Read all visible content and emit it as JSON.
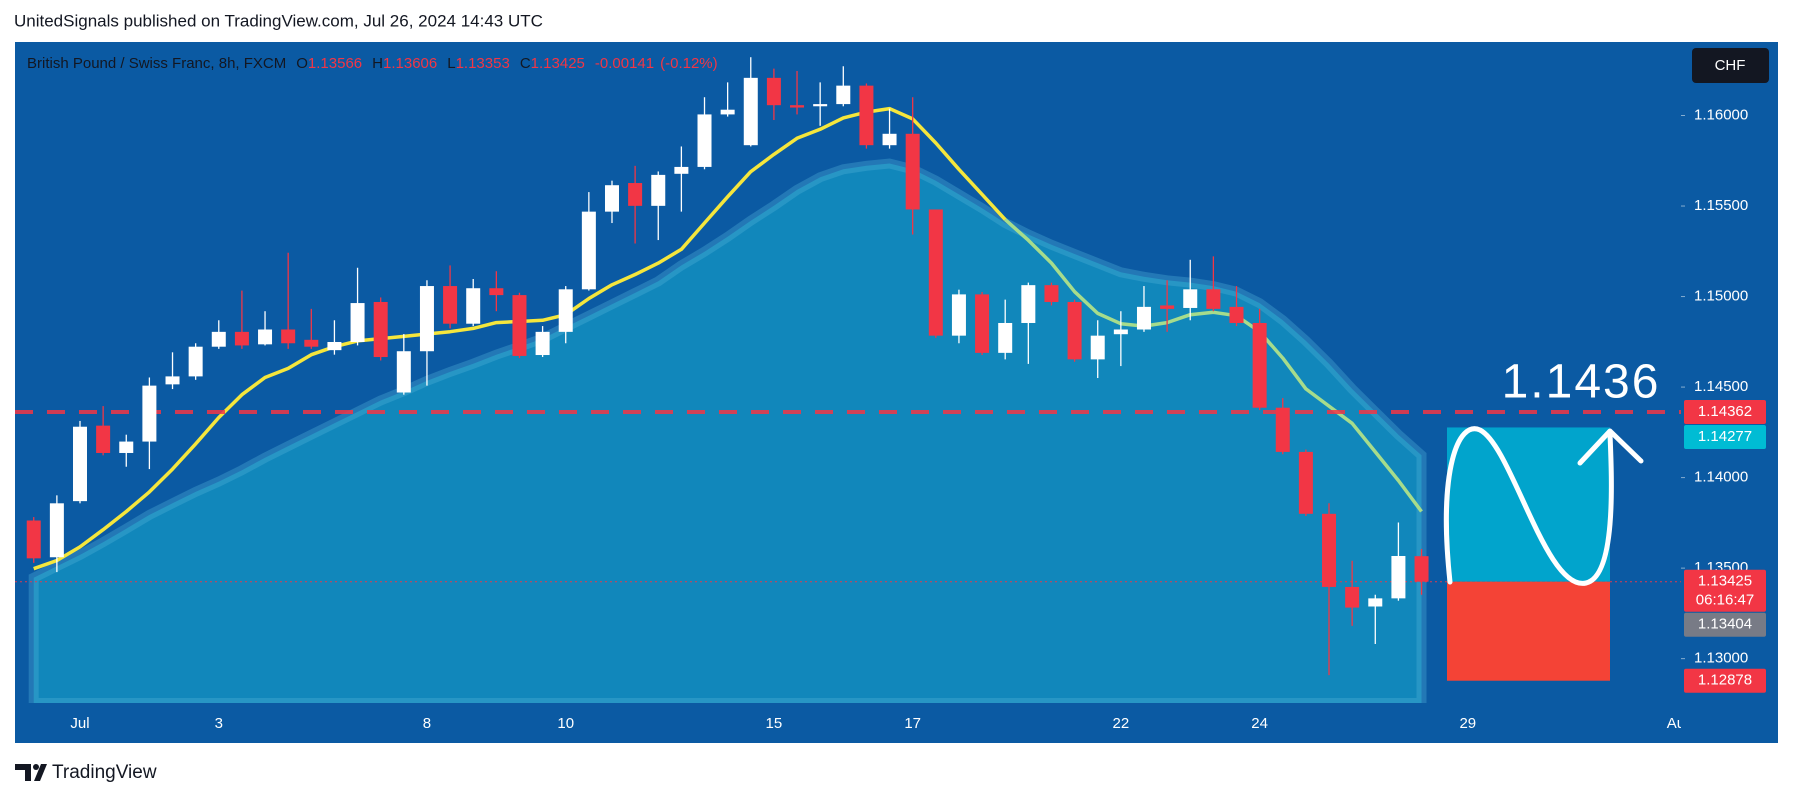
{
  "header": "UnitedSignals published on TradingView.com, Jul 26, 2024 14:43 UTC",
  "footer": "TradingView",
  "chart_data": {
    "type": "candlestick",
    "title": "British Pound / Swiss Franc, 8h, FXCM",
    "legend": {
      "o_label": "O",
      "open": "1.13566",
      "h_label": "H",
      "high": "1.13606",
      "l_label": "L",
      "low": "1.13353",
      "c_label": "C",
      "close": "1.13425",
      "change": "-0.00141",
      "change_pct": "(-0.12%)"
    },
    "currency": "CHF",
    "categories": [
      null,
      null,
      "Jul",
      null,
      null,
      null,
      null,
      null,
      "3",
      null,
      null,
      null,
      null,
      null,
      null,
      null,
      null,
      "8",
      null,
      null,
      null,
      null,
      null,
      "10",
      null,
      null,
      null,
      null,
      null,
      null,
      null,
      null,
      "15",
      null,
      null,
      null,
      null,
      null,
      "17",
      null,
      null,
      null,
      null,
      null,
      null,
      null,
      null,
      "22",
      null,
      null,
      null,
      null,
      null,
      "24",
      null,
      null,
      null,
      null,
      null,
      null,
      null,
      null,
      "29",
      null,
      null,
      null,
      null,
      null,
      null,
      null,
      null,
      "Au"
    ],
    "open": [
      1.13763,
      1.1356,
      1.1387,
      1.14287,
      1.14136,
      1.14199,
      1.14515,
      1.14559,
      1.14723,
      1.14805,
      1.14736,
      1.14818,
      1.14761,
      1.14704,
      1.14749,
      1.1497,
      1.1447,
      1.14698,
      1.15058,
      1.1485,
      1.15046,
      1.15008,
      1.14677,
      1.14805,
      1.1504,
      1.15469,
      1.15627,
      1.15501,
      1.15678,
      1.15716,
      1.16006,
      1.15836,
      1.16208,
      1.16057,
      1.16051,
      1.16063,
      1.16165,
      1.15836,
      1.15899,
      1.15481,
      1.14784,
      1.15012,
      1.14689,
      1.14854,
      1.15063,
      1.1497,
      1.14653,
      1.14792,
      1.14818,
      1.14951,
      1.14937,
      1.1504,
      1.14943,
      1.14854,
      1.14386,
      1.14142,
      1.138,
      1.13396,
      1.13288,
      1.13333,
      1.13566,
      null,
      null,
      null,
      null,
      null,
      null,
      null,
      null,
      null,
      null,
      null
    ],
    "high": [
      1.13782,
      1.13902,
      1.14313,
      1.14395,
      1.14237,
      1.14553,
      1.14692,
      1.14742,
      1.14869,
      1.15033,
      1.14919,
      1.15242,
      1.14932,
      1.14869,
      1.15159,
      1.14995,
      1.14793,
      1.1509,
      1.15172,
      1.15097,
      1.1514,
      1.15021,
      1.14837,
      1.15058,
      1.15577,
      1.1564,
      1.15722,
      1.15691,
      1.15829,
      1.16101,
      1.16183,
      1.16322,
      1.16259,
      1.16246,
      1.16183,
      1.16272,
      1.16177,
      1.16038,
      1.16101,
      1.15481,
      1.15038,
      1.15025,
      1.14983,
      1.15077,
      1.15077,
      1.14983,
      1.14869,
      1.14919,
      1.15058,
      1.1509,
      1.15203,
      1.15222,
      1.15058,
      1.14932,
      1.14439,
      1.14155,
      1.13858,
      1.13541,
      1.13353,
      1.13752,
      1.13606,
      null,
      null,
      null,
      null,
      null,
      null,
      null,
      null,
      null,
      null,
      null
    ],
    "low": [
      1.13529,
      1.13478,
      1.13858,
      1.14123,
      1.1406,
      1.14047,
      1.14489,
      1.1454,
      1.14711,
      1.14711,
      1.1473,
      1.14711,
      1.14711,
      1.14679,
      1.1473,
      1.14647,
      1.14458,
      1.14508,
      1.14824,
      1.14837,
      1.14919,
      1.1466,
      1.14666,
      1.14742,
      1.15033,
      1.15406,
      1.15293,
      1.15312,
      1.15469,
      1.15703,
      1.15994,
      1.15829,
      1.15975,
      1.16006,
      1.15943,
      1.16051,
      1.15817,
      1.15817,
      1.15343,
      1.14772,
      1.14742,
      1.14677,
      1.14653,
      1.14628,
      1.14951,
      1.1464,
      1.1455,
      1.14616,
      1.14805,
      1.14805,
      1.14869,
      1.14919,
      1.14837,
      1.14373,
      1.14129,
      1.13788,
      1.12909,
      1.13181,
      1.13081,
      1.1332,
      1.13353,
      null,
      null,
      null,
      null,
      null,
      null,
      null,
      null,
      null,
      null,
      null
    ],
    "close": [
      1.13554,
      1.13858,
      1.14281,
      1.14136,
      1.14199,
      1.14508,
      1.14559,
      1.14723,
      1.14805,
      1.1473,
      1.14818,
      1.14742,
      1.14723,
      1.14749,
      1.14964,
      1.14666,
      1.14698,
      1.15058,
      1.1485,
      1.15046,
      1.15008,
      1.14672,
      1.14805,
      1.1504,
      1.15469,
      1.15615,
      1.15501,
      1.15672,
      1.15716,
      1.16006,
      1.16032,
      1.16208,
      1.16057,
      1.16044,
      1.16063,
      1.16165,
      1.15836,
      1.15899,
      1.15481,
      1.14784,
      1.15012,
      1.14689,
      1.14854,
      1.15063,
      1.1497,
      1.14653,
      1.14784,
      1.14818,
      1.14943,
      1.14932,
      1.1504,
      1.14932,
      1.14854,
      1.14386,
      1.14142,
      1.138,
      1.13396,
      1.13282,
      1.13333,
      1.13567,
      1.13425,
      null,
      null,
      null,
      null,
      null,
      null,
      null,
      null,
      null,
      null,
      null
    ],
    "up_color": "#ffffff",
    "down_color": "#f23645",
    "overlays": [
      {
        "type": "area",
        "color": "#138fc0",
        "values": [
          1.13447,
          1.1351,
          1.13573,
          1.13643,
          1.13718,
          1.13794,
          1.13858,
          1.13921,
          1.13978,
          1.14041,
          1.1411,
          1.14174,
          1.14237,
          1.143,
          1.14363,
          1.14426,
          1.14477,
          1.14534,
          1.14584,
          1.14629,
          1.14679,
          1.14723,
          1.14768,
          1.14831,
          1.14894,
          1.14957,
          1.1502,
          1.15084,
          1.15172,
          1.15248,
          1.1533,
          1.15419,
          1.15501,
          1.15589,
          1.15659,
          1.15703,
          1.15722,
          1.15735,
          1.15703,
          1.1564,
          1.15564,
          1.15488,
          1.15406,
          1.15343,
          1.15286,
          1.15235,
          1.15185,
          1.15134,
          1.15109,
          1.1509,
          1.15077,
          1.15058,
          1.15027,
          1.14964,
          1.14869,
          1.14755,
          1.14629,
          1.1449,
          1.14363,
          1.14237,
          1.14123,
          null,
          null,
          null,
          null,
          null,
          null,
          null,
          null,
          null,
          null,
          null
        ]
      },
      {
        "type": "line",
        "color": "#f5e63c",
        "values": [
          1.13497,
          1.13542,
          1.13617,
          1.13712,
          1.13813,
          1.13921,
          1.14047,
          1.14186,
          1.14332,
          1.14458,
          1.14553,
          1.14603,
          1.14679,
          1.14723,
          1.14755,
          1.14768,
          1.1478,
          1.14793,
          1.14806,
          1.14824,
          1.14856,
          1.14862,
          1.14869,
          1.149,
          1.14989,
          1.15065,
          1.15122,
          1.15185,
          1.15261,
          1.15406,
          1.15551,
          1.1569,
          1.15785,
          1.15874,
          1.15924,
          1.15987,
          1.16019,
          1.16038,
          1.15981,
          1.15848,
          1.15703,
          1.15564,
          1.15425,
          null,
          null,
          null,
          null,
          null,
          null,
          null,
          null,
          null,
          null,
          null,
          null,
          null,
          null,
          null,
          null,
          null,
          null,
          null,
          null,
          null,
          null,
          null,
          null,
          null,
          null,
          null,
          null,
          null
        ]
      },
      {
        "type": "line",
        "color": "#a6dc8c",
        "values": [
          null,
          null,
          null,
          null,
          null,
          null,
          null,
          null,
          null,
          null,
          null,
          null,
          null,
          null,
          null,
          null,
          null,
          null,
          null,
          null,
          null,
          null,
          null,
          null,
          null,
          null,
          null,
          null,
          null,
          null,
          null,
          null,
          null,
          null,
          null,
          null,
          null,
          null,
          null,
          null,
          null,
          null,
          1.15425,
          1.15311,
          1.15185,
          1.15027,
          1.14907,
          1.1485,
          1.14837,
          1.14856,
          1.149,
          1.14913,
          1.14894,
          1.14806,
          1.1466,
          1.1449,
          1.14395,
          1.143,
          1.14142,
          1.13984,
          1.13813,
          null,
          null,
          null,
          null,
          null,
          null,
          null,
          null,
          null,
          null,
          null
        ]
      }
    ],
    "ylim": [
      1.12755,
      1.16406
    ],
    "yticks": [
      {
        "value": 1.13,
        "label": "1.13000"
      },
      {
        "value": 1.135,
        "label": "1.13500"
      },
      {
        "value": 1.14,
        "label": "1.14000"
      },
      {
        "value": 1.145,
        "label": "1.14500"
      },
      {
        "value": 1.15,
        "label": "1.15000"
      },
      {
        "value": 1.155,
        "label": "1.15500"
      },
      {
        "value": 1.16,
        "label": "1.16000"
      }
    ],
    "hlines": [
      {
        "value": 1.14362,
        "color": "#f23645",
        "style": "dashed"
      },
      {
        "value": 1.13425,
        "color": "#f23645",
        "style": "dotted"
      }
    ],
    "position": {
      "target": 1.14277,
      "entry": 1.13425,
      "stop": 1.12878,
      "target_color": "#00acd0",
      "stop_color": "#f44336"
    },
    "annotation": "1.1436",
    "price_labels": [
      {
        "value": 1.14362,
        "label": "1.14362",
        "color": "#f23645"
      },
      {
        "value": 1.14277,
        "label": "1.14277",
        "color": "#00bcd4"
      },
      {
        "value": 1.13425,
        "label": "1.13425",
        "sub": "06:16:47",
        "color": "#f23645"
      },
      {
        "value": 1.13404,
        "label": "1.13404",
        "color": "#787b86"
      },
      {
        "value": 1.12878,
        "label": "1.12878",
        "color": "#f23645"
      }
    ]
  }
}
